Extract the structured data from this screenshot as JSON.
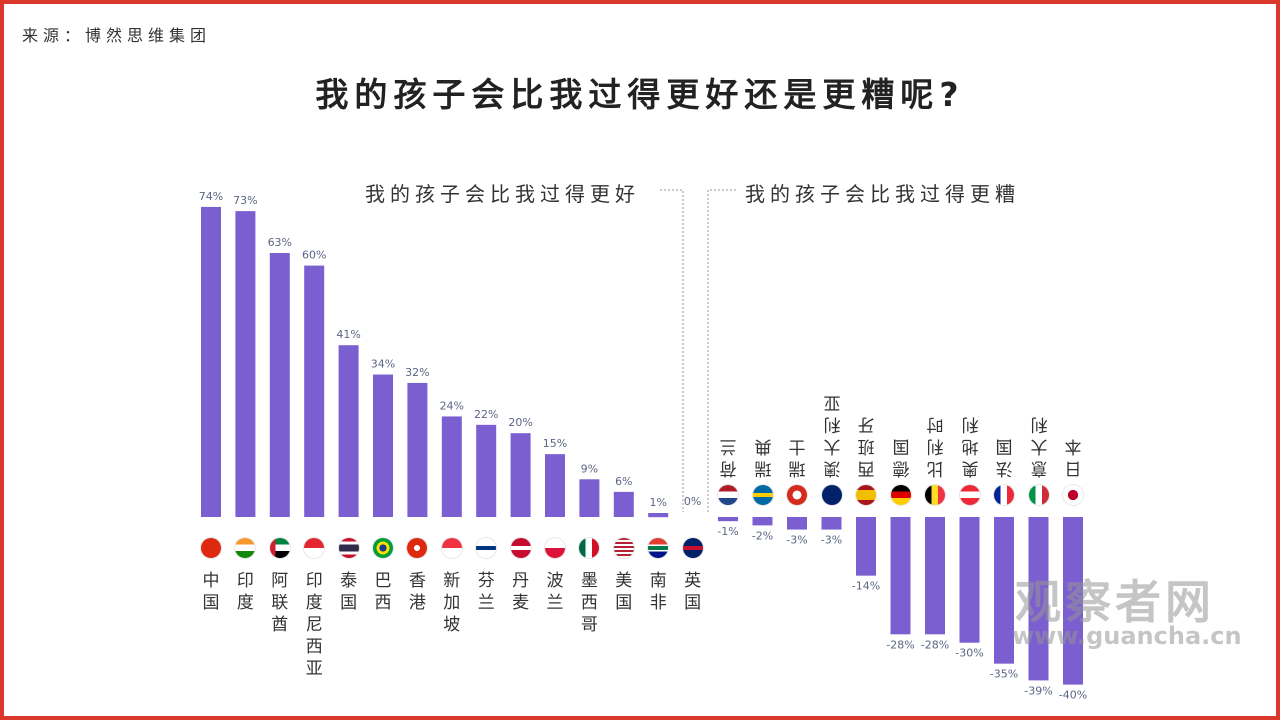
{
  "source": "来源：博然思维集团",
  "chart_data": {
    "type": "bar",
    "title": "我的孩子会比我过得更好还是更糟呢?",
    "group_labels": {
      "better": "我的孩子会比我过得更好",
      "worse": "我的孩子会比我过得更糟"
    },
    "unit": "%",
    "bar_color": "#7b5fd0",
    "ylim": [
      -40,
      74
    ],
    "categories": [
      "中国",
      "印度",
      "阿联酋",
      "印度尼西亚",
      "泰国",
      "巴西",
      "香港",
      "新加坡",
      "芬兰",
      "丹麦",
      "波兰",
      "墨西哥",
      "美国",
      "南非",
      "英国",
      "荷兰",
      "瑞典",
      "瑞士",
      "澳大利亚",
      "西班牙",
      "德国",
      "比利时",
      "奥地利",
      "法国",
      "意大利",
      "日本"
    ],
    "values": [
      74,
      73,
      63,
      60,
      41,
      34,
      32,
      24,
      22,
      20,
      15,
      9,
      6,
      1,
      0,
      -1,
      -2,
      -3,
      -3,
      -14,
      -28,
      -28,
      -30,
      -35,
      -39,
      -40
    ],
    "labels": [
      "74%",
      "73%",
      "63%",
      "60%",
      "41%",
      "34%",
      "32%",
      "24%",
      "22%",
      "20%",
      "15%",
      "9%",
      "6%",
      "1%",
      "0%",
      "-1%",
      "-2%",
      "-3%",
      "-3%",
      "-14%",
      "-28%",
      "-28%",
      "-30%",
      "-35%",
      "-39%",
      "-40%"
    ],
    "flags": [
      "cn",
      "in",
      "ae",
      "id",
      "th",
      "br",
      "hk",
      "sg",
      "fi",
      "dk",
      "pl",
      "mx",
      "us",
      "za",
      "gb",
      "nl",
      "se",
      "ch",
      "au",
      "es",
      "de",
      "be",
      "at",
      "fr",
      "it",
      "jp"
    ]
  },
  "watermark": {
    "name": "观察者网",
    "url": "www.guancha.cn"
  }
}
